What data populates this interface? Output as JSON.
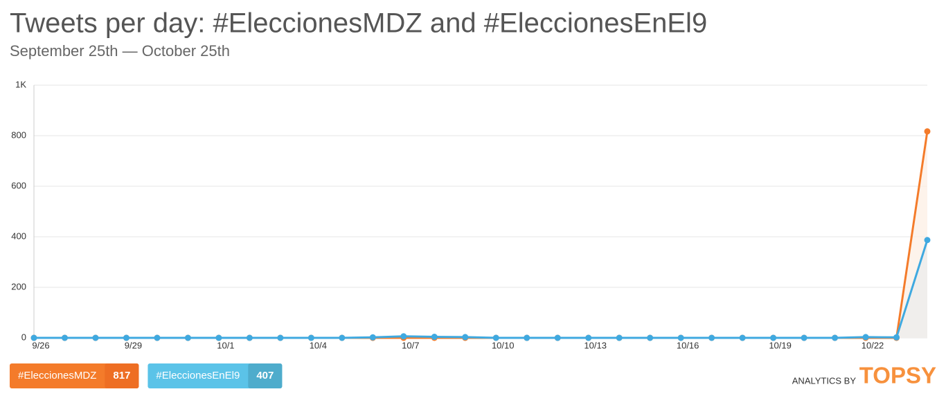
{
  "chart_data": {
    "type": "line",
    "title": "Tweets per day: #EleccionesMDZ and #EleccionesEnEl9",
    "subtitle": "September 25th — October 25th",
    "categories": [
      "9/26",
      null,
      null,
      "9/29",
      null,
      null,
      "10/1",
      null,
      null,
      "10/4",
      null,
      null,
      "10/7",
      null,
      null,
      "10/10",
      null,
      null,
      "10/13",
      null,
      null,
      "10/16",
      null,
      null,
      "10/19",
      null,
      null,
      "10/22",
      null,
      null
    ],
    "series": [
      {
        "name": "#EleccionesMDZ",
        "color": "#f47b2a",
        "area_color": "#fdf0e6",
        "total_color": "#ee6e23",
        "total": 817,
        "values": [
          0,
          0,
          0,
          0,
          0,
          0,
          0,
          0,
          0,
          0,
          0,
          0,
          0,
          0,
          0,
          0,
          0,
          0,
          0,
          0,
          0,
          0,
          0,
          0,
          0,
          0,
          0,
          0,
          0,
          817
        ]
      },
      {
        "name": "#EleccionesEnEl9",
        "color": "#3fa9e0",
        "area_color": "#ececec",
        "legend_color": "#5bc3e8",
        "total_color": "#4eaccc",
        "total": 407,
        "values": [
          0,
          0,
          0,
          0,
          0,
          0,
          0,
          0,
          0,
          0,
          0,
          2,
          6,
          4,
          3,
          0,
          0,
          0,
          0,
          0,
          0,
          0,
          0,
          0,
          0,
          0,
          0,
          3,
          2,
          387
        ]
      }
    ],
    "ylim": [
      0,
      1000
    ],
    "yticks": [
      0,
      200,
      400,
      600,
      800,
      {
        "value": 1000,
        "label": "1K"
      }
    ],
    "grid": true,
    "credit": "ANALYTICS BY",
    "credit_logo": "TOPSY"
  }
}
